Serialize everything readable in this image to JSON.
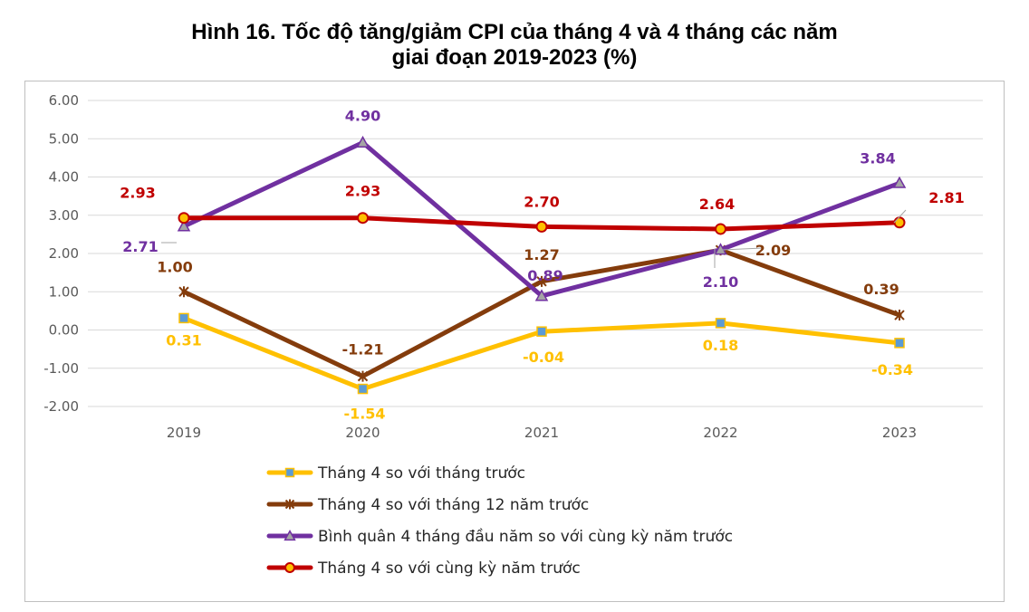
{
  "chart_data": {
    "type": "line",
    "title_line1": "Hình 16. Tốc độ tăng/giảm CPI của tháng 4 và 4 tháng các năm",
    "title_line2": "giai đoạn 2019-2023 (%)",
    "categories": [
      "2019",
      "2020",
      "2021",
      "2022",
      "2023"
    ],
    "ylim": [
      -2,
      6
    ],
    "yticks": [
      "-2.00",
      "-1.00",
      "0.00",
      "1.00",
      "2.00",
      "3.00",
      "4.00",
      "5.00",
      "6.00"
    ],
    "grid": true,
    "legend_position": "bottom",
    "series": [
      {
        "name": "Tháng 4 so với tháng trước",
        "values": [
          0.31,
          -1.54,
          -0.04,
          0.18,
          -0.34
        ],
        "labels": [
          "0.31",
          "-1.54",
          "-0.04",
          "0.18",
          "-0.34"
        ],
        "color": "#FFC000",
        "marker": "square",
        "marker_fill": "#5B9BD5"
      },
      {
        "name": "Tháng 4 so với tháng 12 năm trước",
        "values": [
          1.0,
          -1.21,
          1.27,
          2.09,
          0.39
        ],
        "labels": [
          "1.00",
          "-1.21",
          "1.27",
          "2.09",
          "0.39"
        ],
        "color": "#843C0C",
        "marker": "star",
        "marker_fill": "#843C0C"
      },
      {
        "name": "Bình quân 4 tháng đầu năm so với cùng kỳ năm trước",
        "values": [
          2.71,
          4.9,
          0.89,
          2.1,
          3.84
        ],
        "labels": [
          "2.71",
          "4.90",
          "0.89",
          "2.10",
          "3.84"
        ],
        "color": "#7030A0",
        "marker": "triangle",
        "marker_fill": "#A5A5A5"
      },
      {
        "name": "Tháng 4 so với cùng kỳ năm trước",
        "values": [
          2.93,
          2.93,
          2.7,
          2.64,
          2.81
        ],
        "labels": [
          "2.93",
          "2.93",
          "2.70",
          "2.64",
          "2.81"
        ],
        "color": "#C00000",
        "marker": "circle",
        "marker_fill": "#FFC000"
      }
    ]
  }
}
